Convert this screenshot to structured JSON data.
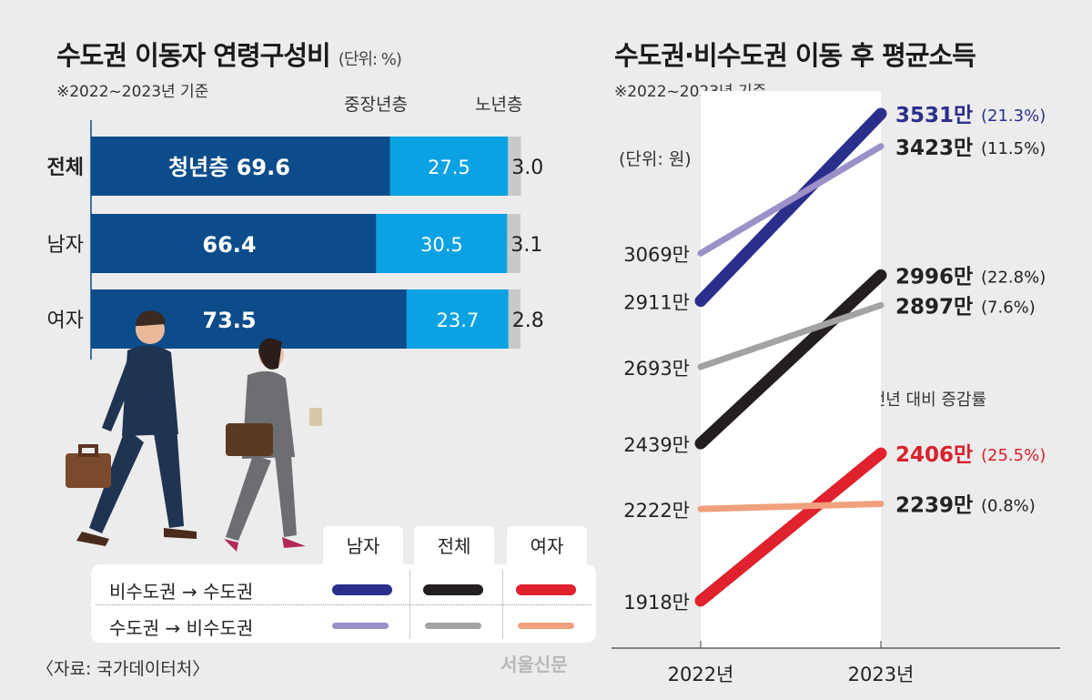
{
  "left": {
    "title": "수도권 이동자 연령구성비",
    "unit": "(단위: %)",
    "note": "※2022~2023년 기준",
    "segment_headers": [
      "청년층",
      "중장년층",
      "노년층"
    ],
    "colors": [
      "#0c4c8a",
      "#0aa2e2",
      "#c9c9c9"
    ]
  },
  "right": {
    "title": "수도권·비수도권 이동 후 평균소득",
    "note": "※2022~2023년 기준",
    "unit": "(단위: 원)",
    "change_note": "※(   )안은 전년 대비 증감률"
  },
  "legend": {
    "columns": [
      "남자",
      "전체",
      "여자"
    ],
    "rows": [
      "비수도권 → 수도권",
      "수도권 → 비수도권"
    ]
  },
  "source": "〈자료: 국가데이터처〉",
  "logo": "서울신문",
  "chart_data": [
    {
      "type": "bar",
      "stacked": true,
      "orientation": "horizontal",
      "title": "수도권 이동자 연령구성비",
      "categories": [
        "전체",
        "남자",
        "여자"
      ],
      "series": [
        {
          "name": "청년층",
          "values": [
            69.6,
            66.4,
            73.5
          ]
        },
        {
          "name": "중장년층",
          "values": [
            27.5,
            30.5,
            23.7
          ]
        },
        {
          "name": "노년층",
          "values": [
            3.0,
            3.1,
            2.8
          ]
        }
      ],
      "value_labels": [
        [
          "청년층 69.6",
          "27.5",
          "3.0"
        ],
        [
          "66.4",
          "30.5",
          "3.1"
        ],
        [
          "73.5",
          "23.7",
          "2.8"
        ]
      ],
      "xlim": [
        0,
        100
      ]
    },
    {
      "type": "line",
      "title": "수도권·비수도권 이동 후 평균소득",
      "x": [
        "2022년",
        "2023년"
      ],
      "ylabel": "만 원",
      "series": [
        {
          "name": "비수도권 → 수도권 남자",
          "values": [
            2911,
            3531
          ],
          "labels": [
            "2911만",
            "3531만"
          ],
          "change": "(21.3%)",
          "color": "#2b2f8c",
          "thick": true,
          "label_color": "#2b2f8c"
        },
        {
          "name": "수도권 → 비수도권 남자",
          "values": [
            3069,
            3423
          ],
          "labels": [
            "3069만",
            "3423만"
          ],
          "change": "(11.5%)",
          "color": "#9b90c8",
          "thick": false,
          "label_color": "#222222"
        },
        {
          "name": "비수도권 → 수도권 전체",
          "values": [
            2439,
            2996
          ],
          "labels": [
            "2439만",
            "2996만"
          ],
          "change": "(22.8%)",
          "color": "#231f20",
          "thick": true,
          "label_color": "#222222"
        },
        {
          "name": "수도권 → 비수도권 전체",
          "values": [
            2693,
            2897
          ],
          "labels": [
            "2693만",
            "2897만"
          ],
          "change": "(7.6%)",
          "color": "#a3a3a3",
          "thick": false,
          "label_color": "#222222"
        },
        {
          "name": "비수도권 → 수도권 여자",
          "values": [
            1918,
            2406
          ],
          "labels": [
            "1918만",
            "2406만"
          ],
          "change": "(25.5%)",
          "color": "#e0212e",
          "thick": true,
          "label_color": "#d9202c"
        },
        {
          "name": "수도권 → 비수도권 여자",
          "values": [
            2222,
            2239
          ],
          "labels": [
            "2222만",
            "2239만"
          ],
          "change": "(0.8%)",
          "color": "#f0a07c",
          "thick": false,
          "label_color": "#222222"
        }
      ]
    }
  ]
}
